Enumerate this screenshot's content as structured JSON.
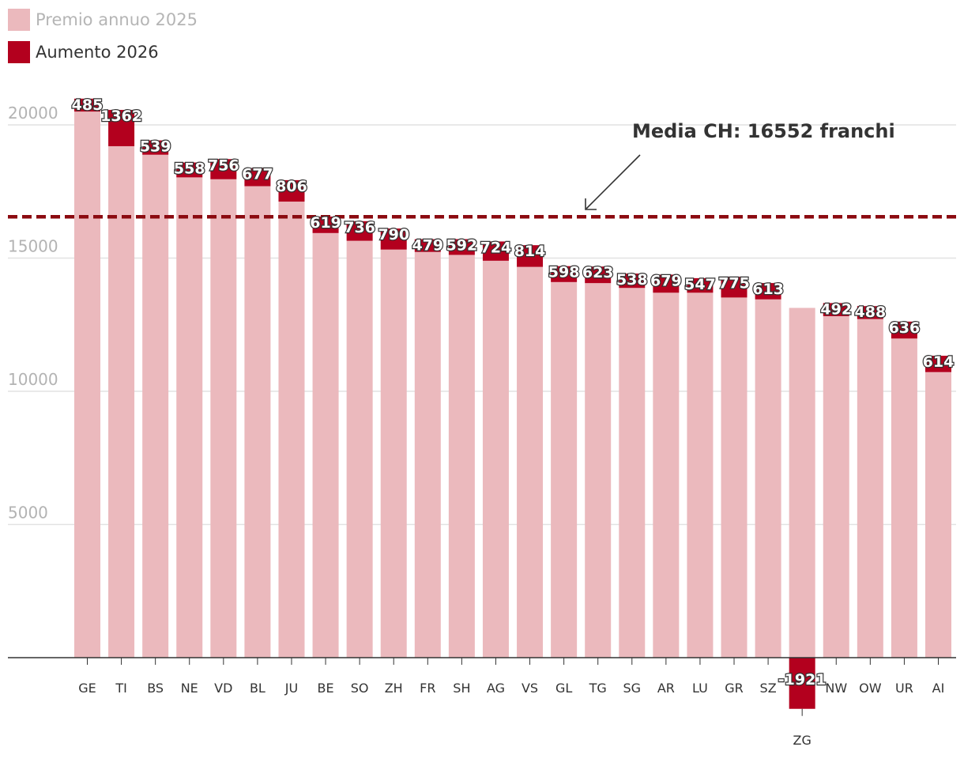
{
  "chart_data": {
    "type": "bar",
    "stacked": true,
    "categories": [
      "GE",
      "TI",
      "BS",
      "NE",
      "VD",
      "BL",
      "JU",
      "BE",
      "SO",
      "ZH",
      "FR",
      "SH",
      "AG",
      "VS",
      "GL",
      "TG",
      "SG",
      "AR",
      "LU",
      "GR",
      "SZ",
      "ZG",
      "NW",
      "OW",
      "UR",
      "AI"
    ],
    "series": [
      {
        "name": "Premio annuo 2025",
        "color": "#ebb9bd",
        "values": [
          20500,
          19200,
          18880,
          18030,
          17960,
          17700,
          17120,
          15940,
          15650,
          15320,
          15230,
          15120,
          14900,
          14670,
          14100,
          14060,
          13880,
          13700,
          13700,
          13520,
          13450,
          13130,
          12820,
          12710,
          11980,
          10720
        ]
      },
      {
        "name": "Aumento 2026",
        "color": "#b3001e",
        "values": [
          485,
          1362,
          539,
          558,
          756,
          677,
          806,
          619,
          736,
          790,
          479,
          592,
          724,
          814,
          598,
          623,
          538,
          679,
          547,
          775,
          613,
          -1921,
          492,
          488,
          636,
          614
        ]
      }
    ],
    "value_labels": [
      "485",
      "1362",
      "539",
      "558",
      "756",
      "677",
      "806",
      "619",
      "736",
      "790",
      "479",
      "592",
      "724",
      "814",
      "598",
      "623",
      "538",
      "679",
      "547",
      "775",
      "613",
      "-1921",
      "492",
      "488",
      "636",
      "614"
    ],
    "yticks": [
      5000,
      10000,
      15000,
      20000
    ],
    "ytick_labels": [
      "5000",
      "10000",
      "15000",
      "20000"
    ],
    "ylim": [
      -2000,
      21000
    ],
    "reference_line": {
      "value": 16552,
      "label": "Media CH: 16552 franchi",
      "color": "#8b0a10"
    },
    "grid": true,
    "legend_position": "top-left",
    "title": "",
    "xlabel": "",
    "ylabel": ""
  }
}
